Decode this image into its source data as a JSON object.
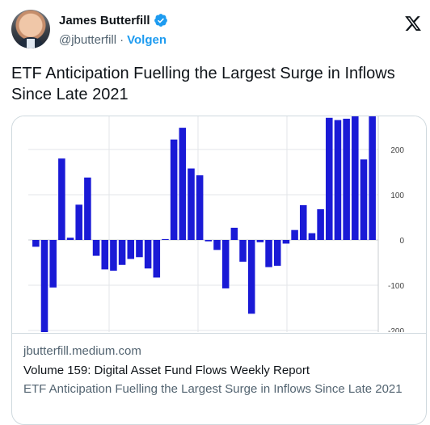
{
  "author": {
    "name": "James Butterfill",
    "handle": "@jbutterfill",
    "separator": "·",
    "follow_label": "Volgen"
  },
  "tweet": {
    "text": "ETF Anticipation Fuelling the Largest Surge in Inflows Since Late 2021"
  },
  "card": {
    "domain": "jbutterfill.medium.com",
    "title": "Volume 159: Digital Asset Fund Flows Weekly Report",
    "description": "ETF Anticipation Fuelling the Largest Surge in Inflows Since Late 2021"
  },
  "colors": {
    "bar": "#1a1ad6",
    "follow": "#1d9bf0",
    "verified": "#1d9bf0"
  },
  "icons": {
    "verified": "verified-badge-icon",
    "x_logo": "x-logo-icon"
  },
  "chart_data": {
    "type": "bar",
    "series": [
      {
        "name": "",
        "values": [
          -15,
          -205,
          -105,
          180,
          5,
          78,
          138,
          -35,
          -65,
          -68,
          -55,
          -42,
          -38,
          -63,
          -83,
          2,
          222,
          248,
          158,
          143,
          -3,
          -22,
          -107,
          27,
          -48,
          -163,
          -5,
          -60,
          -57,
          -8,
          22,
          77,
          15,
          68,
          270,
          265,
          268,
          280,
          178,
          275
        ]
      }
    ],
    "ylim": [
      -200,
      270
    ],
    "yticks": [
      "200",
      "100",
      "0",
      "-100",
      "-200"
    ],
    "ytick_values": [
      200,
      100,
      0,
      -100,
      -200
    ],
    "grid": true,
    "axis_side": "right"
  }
}
